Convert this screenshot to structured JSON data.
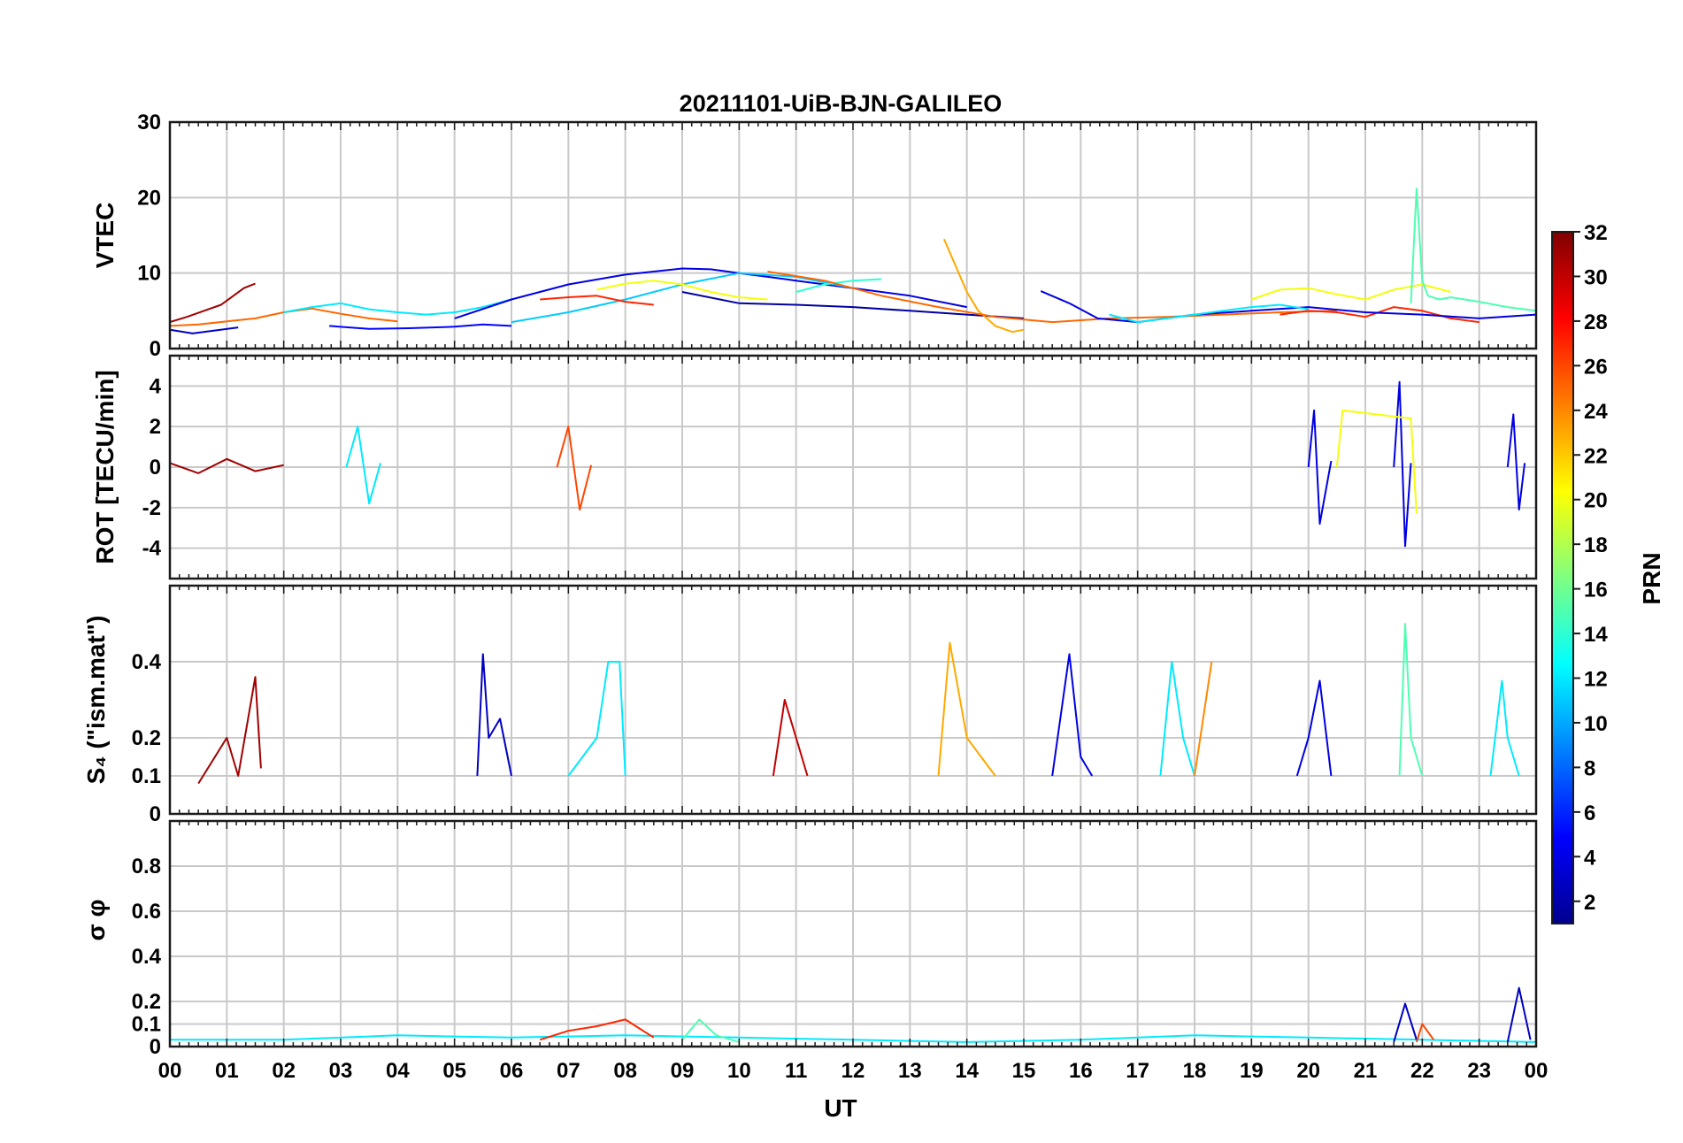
{
  "chart_data": {
    "type": "line",
    "title": "20211101-UiB-BJN-GALILEO",
    "xlabel": "UT",
    "x_ticks": [
      "00",
      "01",
      "02",
      "03",
      "04",
      "05",
      "06",
      "07",
      "08",
      "09",
      "10",
      "11",
      "12",
      "13",
      "14",
      "15",
      "16",
      "17",
      "18",
      "19",
      "20",
      "21",
      "22",
      "23",
      "00"
    ],
    "xlim": [
      0,
      24
    ],
    "grid": true,
    "colorbar": {
      "label": "PRN",
      "range": [
        1,
        32
      ],
      "ticks": [
        "2",
        "4",
        "6",
        "8",
        "10",
        "12",
        "14",
        "16",
        "18",
        "20",
        "22",
        "24",
        "26",
        "28",
        "30",
        "32"
      ],
      "colormap": "jet"
    },
    "panels": [
      {
        "ylabel": "VTEC",
        "ylim": [
          0,
          30
        ],
        "y_ticks": [
          "0",
          "10",
          "20",
          "30"
        ],
        "y_tick_values": [
          0,
          10,
          20,
          30
        ],
        "series": [
          {
            "prn": 31,
            "x": [
              0.0,
              0.3,
              0.6,
              0.9,
              1.1,
              1.3,
              1.5
            ],
            "y": [
              3.5,
              4.2,
              5.0,
              5.8,
              6.9,
              8.0,
              8.6
            ]
          },
          {
            "prn": 25,
            "x": [
              0.0,
              0.5,
              1.0,
              1.5,
              2.0,
              2.5,
              3.0,
              3.5,
              4.0
            ],
            "y": [
              3.0,
              3.2,
              3.6,
              4.0,
              4.8,
              5.3,
              4.6,
              4.0,
              3.6
            ]
          },
          {
            "prn": 3,
            "x": [
              0.0,
              0.4,
              0.8,
              1.2
            ],
            "y": [
              2.5,
              2.0,
              2.4,
              2.8
            ]
          },
          {
            "prn": 5,
            "x": [
              2.8,
              3.5,
              4.2,
              5.0,
              5.5,
              6.0
            ],
            "y": [
              3.0,
              2.6,
              2.7,
              2.9,
              3.2,
              3.0
            ]
          },
          {
            "prn": 12,
            "x": [
              2.0,
              2.5,
              3.0,
              3.5,
              4.0,
              4.5,
              5.0,
              5.5,
              6.0
            ],
            "y": [
              4.8,
              5.5,
              6.0,
              5.2,
              4.8,
              4.5,
              4.8,
              5.5,
              6.5
            ]
          },
          {
            "prn": 4,
            "x": [
              5.0,
              6.0,
              7.0,
              8.0,
              9.0,
              9.5,
              10.0,
              10.5,
              11.0,
              12.0,
              13.0,
              14.0
            ],
            "y": [
              4.0,
              6.5,
              8.5,
              9.8,
              10.6,
              10.5,
              10.0,
              9.5,
              9.0,
              8.0,
              7.0,
              5.5
            ]
          },
          {
            "prn": 11,
            "x": [
              6.0,
              7.0,
              8.0,
              9.0,
              10.0,
              11.0,
              12.0
            ],
            "y": [
              3.5,
              4.8,
              6.5,
              8.5,
              10.0,
              9.5,
              8.0
            ]
          },
          {
            "prn": 27,
            "x": [
              6.5,
              7.0,
              7.5,
              8.0,
              8.5
            ],
            "y": [
              6.5,
              6.8,
              7.0,
              6.2,
              5.8
            ]
          },
          {
            "prn": 20,
            "x": [
              7.5,
              8.0,
              8.5,
              9.0,
              9.5,
              10.0,
              10.5
            ],
            "y": [
              7.8,
              8.6,
              9.0,
              8.5,
              7.5,
              6.8,
              6.5
            ]
          },
          {
            "prn": 2,
            "x": [
              9.0,
              10.0,
              11.0,
              12.0,
              13.0,
              14.0,
              15.0
            ],
            "y": [
              7.5,
              6.0,
              5.8,
              5.5,
              5.0,
              4.5,
              4.0
            ]
          },
          {
            "prn": 14,
            "x": [
              11.0,
              11.5,
              12.0,
              12.5
            ],
            "y": [
              7.5,
              8.5,
              9.0,
              9.2
            ]
          },
          {
            "prn": 23,
            "x": [
              13.6,
              13.8,
              14.0,
              14.2,
              14.5,
              14.8,
              15.0
            ],
            "y": [
              14.5,
              11.0,
              7.5,
              5.0,
              3.0,
              2.2,
              2.5
            ]
          },
          {
            "prn": 25,
            "x": [
              10.5,
              11.5,
              12.5,
              13.5,
              14.5,
              15.5,
              16.5,
              17.5,
              18.5,
              19.5,
              20.5
            ],
            "y": [
              10.2,
              9.0,
              7.0,
              5.5,
              4.2,
              3.5,
              4.0,
              4.2,
              4.5,
              4.8,
              5.0
            ]
          },
          {
            "prn": 20,
            "x": [
              19.0,
              19.5,
              20.0,
              20.5,
              21.0,
              21.5,
              22.0,
              22.5
            ],
            "y": [
              6.5,
              7.8,
              8.0,
              7.2,
              6.5,
              7.8,
              8.5,
              7.5
            ]
          },
          {
            "prn": 15,
            "x": [
              21.8,
              21.9,
              22.0,
              22.1,
              22.3,
              22.5,
              23.0,
              23.5,
              24.0
            ],
            "y": [
              6.0,
              21.2,
              9.0,
              7.0,
              6.5,
              6.8,
              6.2,
              5.5,
              5.0
            ]
          },
          {
            "prn": 27,
            "x": [
              19.5,
              20.0,
              20.5,
              21.0,
              21.5,
              22.0,
              22.5,
              23.0
            ],
            "y": [
              4.5,
              5.0,
              4.8,
              4.2,
              5.5,
              5.0,
              4.0,
              3.5
            ]
          },
          {
            "prn": 4,
            "x": [
              15.3,
              15.8,
              16.3,
              17.0,
              18.0,
              19.0,
              20.0,
              21.0,
              22.0,
              23.0,
              24.0
            ],
            "y": [
              7.6,
              6.0,
              4.0,
              3.5,
              4.5,
              5.0,
              5.5,
              4.8,
              4.5,
              4.0,
              4.5
            ]
          },
          {
            "prn": 12,
            "x": [
              16.5,
              17.0,
              17.5,
              18.0,
              18.5,
              19.0,
              19.5,
              20.0
            ],
            "y": [
              4.5,
              3.5,
              4.0,
              4.5,
              5.0,
              5.5,
              5.8,
              5.2
            ]
          }
        ]
      },
      {
        "ylabel": "ROT [TECU/min]",
        "ylim": [
          -5.5,
          5.5
        ],
        "y_ticks": [
          "-4",
          "-2",
          "0",
          "2",
          "4"
        ],
        "y_tick_values": [
          -4,
          -2,
          0,
          2,
          4
        ],
        "series": [
          {
            "prn": 31,
            "x": [
              0.0,
              0.5,
              1.0,
              1.5,
              2.0
            ],
            "y": [
              0.2,
              -0.3,
              0.4,
              -0.2,
              0.1
            ]
          },
          {
            "prn": 12,
            "x": [
              3.1,
              3.3,
              3.5,
              3.7
            ],
            "y": [
              0.0,
              2.0,
              -1.8,
              0.2
            ]
          },
          {
            "prn": 26,
            "x": [
              6.8,
              7.0,
              7.2,
              7.4
            ],
            "y": [
              0.0,
              2.0,
              -2.1,
              0.1
            ]
          },
          {
            "prn": 4,
            "x": [
              20.0,
              20.1,
              20.2,
              20.4
            ],
            "y": [
              0.0,
              2.8,
              -2.8,
              0.3
            ]
          },
          {
            "prn": 4,
            "x": [
              21.5,
              21.6,
              21.7,
              21.8
            ],
            "y": [
              0.0,
              4.2,
              -3.9,
              0.2
            ]
          },
          {
            "prn": 4,
            "x": [
              23.5,
              23.6,
              23.7,
              23.8
            ],
            "y": [
              0.0,
              2.6,
              -2.1,
              0.2
            ]
          },
          {
            "prn": 20,
            "x": [
              20.5,
              20.6,
              21.8,
              21.9
            ],
            "y": [
              0.0,
              2.8,
              2.4,
              -2.3
            ]
          }
        ]
      },
      {
        "ylabel": "S₄ (\"ism.mat\")",
        "ylim": [
          0,
          0.6
        ],
        "y_ticks": [
          "0",
          "0.1",
          "0.2",
          "0.4"
        ],
        "y_tick_values": [
          0,
          0.1,
          0.2,
          0.4
        ],
        "series": [
          {
            "prn": 31,
            "x": [
              0.5,
              1.0,
              1.2,
              1.5,
              1.6
            ],
            "y": [
              0.08,
              0.2,
              0.1,
              0.36,
              0.12
            ]
          },
          {
            "prn": 3,
            "x": [
              5.4,
              5.5,
              5.6,
              5.8,
              6.0
            ],
            "y": [
              0.1,
              0.42,
              0.2,
              0.25,
              0.1
            ]
          },
          {
            "prn": 12,
            "x": [
              7.0,
              7.5,
              7.7,
              7.9,
              8.0
            ],
            "y": [
              0.1,
              0.2,
              0.4,
              0.4,
              0.1
            ]
          },
          {
            "prn": 30,
            "x": [
              10.6,
              10.8,
              11.0,
              11.2
            ],
            "y": [
              0.1,
              0.3,
              0.2,
              0.1
            ]
          },
          {
            "prn": 23,
            "x": [
              13.5,
              13.7,
              14.0,
              14.5
            ],
            "y": [
              0.1,
              0.45,
              0.2,
              0.1
            ]
          },
          {
            "prn": 4,
            "x": [
              15.5,
              15.8,
              16.0,
              16.2
            ],
            "y": [
              0.1,
              0.42,
              0.15,
              0.1
            ]
          },
          {
            "prn": 12,
            "x": [
              17.4,
              17.6,
              17.8,
              18.0
            ],
            "y": [
              0.1,
              0.4,
              0.2,
              0.1
            ]
          },
          {
            "prn": 24,
            "x": [
              18.0,
              18.2,
              18.3
            ],
            "y": [
              0.1,
              0.3,
              0.4
            ]
          },
          {
            "prn": 4,
            "x": [
              19.8,
              20.0,
              20.2,
              20.4
            ],
            "y": [
              0.1,
              0.2,
              0.35,
              0.1
            ]
          },
          {
            "prn": 15,
            "x": [
              21.6,
              21.7,
              21.8,
              22.0
            ],
            "y": [
              0.1,
              0.5,
              0.2,
              0.1
            ]
          },
          {
            "prn": 12,
            "x": [
              23.2,
              23.4,
              23.5,
              23.7
            ],
            "y": [
              0.1,
              0.35,
              0.2,
              0.1
            ]
          }
        ]
      },
      {
        "ylabel": "σ φ",
        "ylim": [
          0,
          1.0
        ],
        "y_ticks": [
          "0",
          "0.1",
          "0.2",
          "0.4",
          "0.6",
          "0.8"
        ],
        "y_tick_values": [
          0,
          0.1,
          0.2,
          0.4,
          0.6,
          0.8
        ],
        "series": [
          {
            "prn": 12,
            "x": [
              0.0,
              2.0,
              4.0,
              6.0,
              8.0,
              10.0,
              12.0,
              14.0,
              16.0,
              18.0,
              20.0,
              22.0,
              24.0
            ],
            "y": [
              0.03,
              0.03,
              0.05,
              0.04,
              0.05,
              0.04,
              0.03,
              0.02,
              0.03,
              0.05,
              0.04,
              0.03,
              0.02
            ]
          },
          {
            "prn": 27,
            "x": [
              6.5,
              7.0,
              7.5,
              8.0,
              8.5
            ],
            "y": [
              0.03,
              0.07,
              0.09,
              0.12,
              0.04
            ]
          },
          {
            "prn": 15,
            "x": [
              9.0,
              9.3,
              9.6,
              10.0
            ],
            "y": [
              0.03,
              0.12,
              0.05,
              0.02
            ]
          },
          {
            "prn": 3,
            "x": [
              21.5,
              21.7,
              21.9
            ],
            "y": [
              0.02,
              0.19,
              0.03
            ]
          },
          {
            "prn": 26,
            "x": [
              21.9,
              22.0,
              22.2
            ],
            "y": [
              0.02,
              0.1,
              0.03
            ]
          },
          {
            "prn": 3,
            "x": [
              23.5,
              23.7,
              23.9
            ],
            "y": [
              0.02,
              0.26,
              0.03
            ]
          }
        ]
      }
    ]
  }
}
